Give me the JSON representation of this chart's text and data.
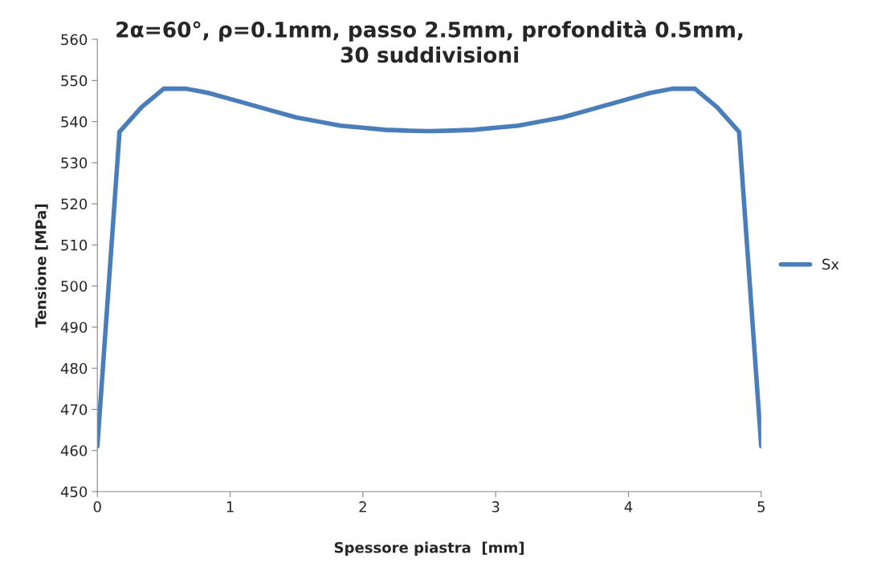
{
  "chart_data": {
    "type": "line",
    "title": "2α=60°, ρ=0.1mm, passo 2.5mm, profondità 0.5mm,\n30 suddivisioni",
    "xlabel": "Spessore piastra  [mm]",
    "ylabel": "Tensione [MPa]",
    "x": [
      0,
      0.167,
      0.333,
      0.5,
      0.667,
      0.833,
      1.0,
      1.167,
      1.333,
      1.5,
      1.667,
      1.833,
      2.0,
      2.167,
      2.333,
      2.5,
      2.667,
      2.833,
      3.0,
      3.167,
      3.333,
      3.5,
      3.667,
      3.833,
      4.0,
      4.167,
      4.333,
      4.5,
      4.667,
      4.833,
      5.0
    ],
    "series": [
      {
        "name": "Sx",
        "color": "#4a7ebb",
        "values": [
          461,
          537.5,
          543.5,
          548,
          548,
          547,
          545.5,
          544,
          542.5,
          541,
          540,
          539,
          538.5,
          538,
          537.8,
          537.7,
          537.8,
          538,
          538.5,
          539,
          540,
          541,
          542.5,
          544,
          545.5,
          547,
          548,
          548,
          543.5,
          537.5,
          461
        ]
      }
    ],
    "xlim": [
      0,
      5
    ],
    "xticks": [
      0,
      1,
      2,
      3,
      4,
      5
    ],
    "ylim": [
      450,
      560
    ],
    "yticks": [
      450,
      460,
      470,
      480,
      490,
      500,
      510,
      520,
      530,
      540,
      550,
      560
    ],
    "grid": false,
    "legend": "right"
  }
}
